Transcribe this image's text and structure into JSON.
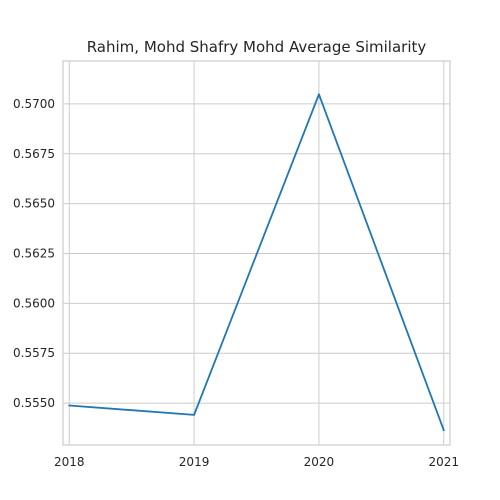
{
  "chart_data": {
    "type": "line",
    "title": "Rahim, Mohd Shafry Mohd Average Similarity",
    "xlabel": "",
    "ylabel": "",
    "x": [
      "2018",
      "2019",
      "2020",
      "2021"
    ],
    "series": [
      {
        "color": "#1f77b4",
        "values": [
          0.55488,
          0.55441,
          0.57048,
          0.55364
        ]
      }
    ],
    "xlim": [
      2017.95,
      2021.05
    ],
    "ylim": [
      0.5529,
      0.57215
    ],
    "yticks": [
      0.555,
      0.5575,
      0.56,
      0.5625,
      0.565,
      0.5675,
      0.57
    ],
    "ytick_labels": [
      "0.5550",
      "0.5575",
      "0.5600",
      "0.5625",
      "0.5650",
      "0.5675",
      "0.5700"
    ],
    "grid": true,
    "legend": "none"
  }
}
